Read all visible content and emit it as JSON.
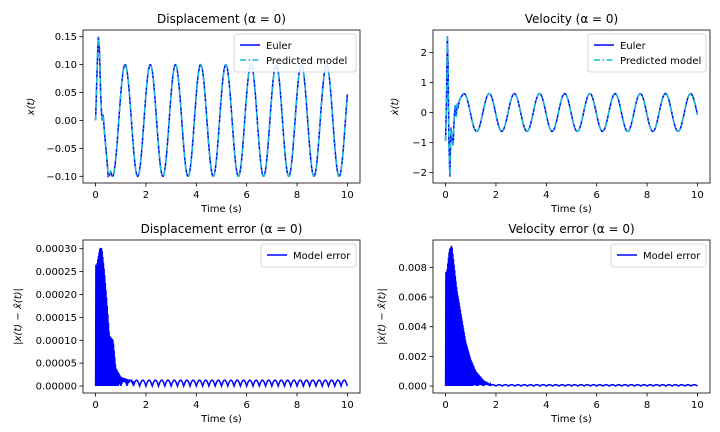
{
  "chart_data": [
    {
      "type": "line",
      "title": "Displacement (α = 0)",
      "xlabel": "Time (s)",
      "ylabel": "x(t)",
      "xlim": [
        -0.5,
        10.5
      ],
      "ylim": [
        -0.112,
        0.162
      ],
      "xticks": [
        "0",
        "2",
        "4",
        "6",
        "8",
        "10"
      ],
      "yticks": [
        "−0.10",
        "−0.05",
        "0.00",
        "0.05",
        "0.10",
        "0.15"
      ],
      "xtick_values": [
        0,
        2,
        4,
        6,
        8,
        10
      ],
      "ytick_values": [
        -0.1,
        -0.05,
        0.0,
        0.05,
        0.1,
        0.15
      ],
      "legend": {
        "position": "upper right",
        "entries": [
          "Euler",
          "Predicted model"
        ]
      },
      "grid": false,
      "series": [
        {
          "name": "Euler",
          "color": "#0000ff",
          "style": "solid",
          "signal": {
            "kind": "displacement",
            "amplitude": 0.1,
            "period": 1.0,
            "transient_end": 0.6,
            "transient_points": [
              [
                0,
                0
              ],
              [
                0.04,
                0.06
              ],
              [
                0.08,
                0.12
              ],
              [
                0.11,
                0.15
              ],
              [
                0.15,
                0.13
              ],
              [
                0.2,
                0.05
              ],
              [
                0.25,
                0.0
              ],
              [
                0.3,
                0.01
              ],
              [
                0.35,
                -0.02
              ],
              [
                0.4,
                -0.045
              ],
              [
                0.45,
                -0.07
              ],
              [
                0.5,
                -0.1
              ],
              [
                0.55,
                -0.098
              ],
              [
                0.6,
                -0.09
              ]
            ]
          }
        },
        {
          "name": "Predicted model",
          "color": "#17becf",
          "style": "dashdot",
          "signal": {
            "kind": "displacement",
            "amplitude": 0.1,
            "period": 1.0,
            "transient_end": 0.6,
            "transient_points": [
              [
                0,
                0
              ],
              [
                0.04,
                0.06
              ],
              [
                0.08,
                0.12
              ],
              [
                0.11,
                0.15
              ],
              [
                0.15,
                0.13
              ],
              [
                0.2,
                0.05
              ],
              [
                0.25,
                0.0
              ],
              [
                0.3,
                0.01
              ],
              [
                0.35,
                -0.02
              ],
              [
                0.4,
                -0.045
              ],
              [
                0.45,
                -0.07
              ],
              [
                0.5,
                -0.1
              ],
              [
                0.55,
                -0.098
              ],
              [
                0.6,
                -0.09
              ]
            ]
          }
        }
      ]
    },
    {
      "type": "line",
      "title": "Velocity (α = 0)",
      "xlabel": "Time (s)",
      "ylabel": "ẋ(t)",
      "xlim": [
        -0.5,
        10.5
      ],
      "ylim": [
        -2.35,
        2.75
      ],
      "xticks": [
        "0",
        "2",
        "4",
        "6",
        "8",
        "10"
      ],
      "yticks": [
        "−2",
        "−1",
        "0",
        "1",
        "2"
      ],
      "xtick_values": [
        0,
        2,
        4,
        6,
        8,
        10
      ],
      "ytick_values": [
        -2,
        -1,
        0,
        1,
        2
      ],
      "legend": {
        "position": "upper right",
        "entries": [
          "Euler",
          "Predicted model"
        ]
      },
      "grid": false,
      "series": [
        {
          "name": "Euler",
          "color": "#0000ff",
          "style": "solid",
          "signal": {
            "kind": "velocity",
            "amplitude": 0.63,
            "period": 1.0,
            "transient_end": 0.65,
            "transient_points": [
              [
                0,
                -0.95
              ],
              [
                0.04,
                0.6
              ],
              [
                0.07,
                2.55
              ],
              [
                0.1,
                1.5
              ],
              [
                0.13,
                -0.9
              ],
              [
                0.17,
                -2.15
              ],
              [
                0.21,
                -0.5
              ],
              [
                0.25,
                -0.8
              ],
              [
                0.3,
                -1.1
              ],
              [
                0.34,
                -0.2
              ],
              [
                0.38,
                0.25
              ],
              [
                0.42,
                -0.15
              ],
              [
                0.46,
                0.3
              ],
              [
                0.5,
                0.2
              ],
              [
                0.55,
                0.4
              ],
              [
                0.6,
                0.5
              ],
              [
                0.65,
                0.55
              ]
            ]
          }
        },
        {
          "name": "Predicted model",
          "color": "#17becf",
          "style": "dashdot",
          "signal": {
            "kind": "velocity",
            "amplitude": 0.63,
            "period": 1.0,
            "transient_end": 0.65,
            "transient_points": [
              [
                0,
                -0.95
              ],
              [
                0.04,
                0.6
              ],
              [
                0.07,
                2.55
              ],
              [
                0.1,
                1.5
              ],
              [
                0.13,
                -0.9
              ],
              [
                0.17,
                -2.15
              ],
              [
                0.21,
                -0.5
              ],
              [
                0.25,
                -0.8
              ],
              [
                0.3,
                -1.1
              ],
              [
                0.34,
                -0.2
              ],
              [
                0.38,
                0.25
              ],
              [
                0.42,
                -0.15
              ],
              [
                0.46,
                0.3
              ],
              [
                0.5,
                0.2
              ],
              [
                0.55,
                0.4
              ],
              [
                0.6,
                0.5
              ],
              [
                0.65,
                0.55
              ]
            ]
          }
        }
      ]
    },
    {
      "type": "line",
      "title": "Displacement error (α = 0)",
      "xlabel": "Time (s)",
      "ylabel": "|x(t) − x̂(t)|",
      "xlim": [
        -0.5,
        10.5
      ],
      "ylim": [
        -1.52e-05,
        0.000319
      ],
      "xticks": [
        "0",
        "2",
        "4",
        "6",
        "8",
        "10"
      ],
      "yticks": [
        "0.00000",
        "0.00005",
        "0.00010",
        "0.00015",
        "0.00020",
        "0.00025",
        "0.00030"
      ],
      "xtick_values": [
        0,
        2,
        4,
        6,
        8,
        10
      ],
      "ytick_values": [
        0,
        5e-05,
        0.0001,
        0.00015,
        0.0002,
        0.00025,
        0.0003
      ],
      "legend": {
        "position": "upper right",
        "entries": [
          "Model error"
        ]
      },
      "grid": false,
      "series": [
        {
          "name": "Model error",
          "color": "#0000ff",
          "style": "solid",
          "signal": {
            "kind": "error",
            "steady_amplitude": 1.3e-05,
            "steady_period": 0.5,
            "spike_end": 1.5,
            "spike_envelope": [
              [
                0.05,
                0.000265
              ],
              [
                0.17,
                0.000302
              ],
              [
                0.25,
                0.000301
              ],
              [
                0.35,
                0.00025
              ],
              [
                0.45,
                0.000185
              ],
              [
                0.55,
                0.00011
              ],
              [
                0.7,
                0.0001
              ],
              [
                0.8,
                4e-05
              ],
              [
                1.0,
                2e-05
              ],
              [
                1.5,
                1e-05
              ]
            ]
          }
        }
      ]
    },
    {
      "type": "line",
      "title": "Velocity error (α = 0)",
      "xlabel": "Time (s)",
      "ylabel": "|ẋ(t) − x̂̇(t)|",
      "xlim": [
        -0.5,
        10.5
      ],
      "ylim": [
        -0.00047,
        0.00985
      ],
      "xticks": [
        "0",
        "2",
        "4",
        "6",
        "8",
        "10"
      ],
      "yticks": [
        "0.000",
        "0.002",
        "0.004",
        "0.006",
        "0.008"
      ],
      "xtick_values": [
        0,
        2,
        4,
        6,
        8,
        10
      ],
      "ytick_values": [
        0,
        0.002,
        0.004,
        0.006,
        0.008
      ],
      "legend": {
        "position": "upper right",
        "entries": [
          "Model error"
        ]
      },
      "grid": false,
      "series": [
        {
          "name": "Model error",
          "color": "#0000ff",
          "style": "solid",
          "signal": {
            "kind": "error",
            "steady_amplitude": 9e-05,
            "steady_period": 0.5,
            "spike_end": 1.8,
            "spike_envelope": [
              [
                0.05,
                0.0077
              ],
              [
                0.15,
                0.0092
              ],
              [
                0.25,
                0.0095
              ],
              [
                0.35,
                0.008
              ],
              [
                0.45,
                0.0065
              ],
              [
                0.55,
                0.0055
              ],
              [
                0.65,
                0.0045
              ],
              [
                0.8,
                0.003
              ],
              [
                1.0,
                0.0018
              ],
              [
                1.2,
                0.001
              ],
              [
                1.5,
                0.0004
              ],
              [
                1.8,
                0.0001
              ]
            ]
          }
        }
      ]
    }
  ]
}
